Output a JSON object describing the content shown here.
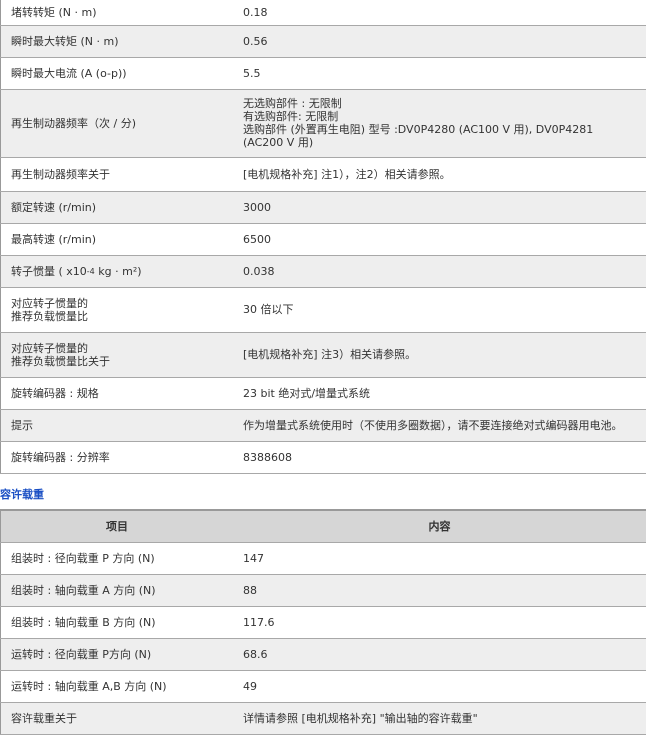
{
  "spec_table": {
    "rows": [
      {
        "label": "堵转转矩 (N · m)",
        "value": "0.18"
      },
      {
        "label": "瞬时最大转矩 (N · m)",
        "value": "0.56"
      },
      {
        "label": "瞬时最大电流 (A (o-p))",
        "value": "5.5"
      },
      {
        "label": "再生制动器频率（次 / 分)",
        "value_lines": [
          "无选购部件 : 无限制",
          "有选购部件: 无限制",
          "选购部件 (外置再生电阻) 型号 :DV0P4280 (AC100 V 用), DV0P4281 (AC200 V 用)"
        ]
      },
      {
        "label": "再生制动器频率关于",
        "value": "[电机规格补充] 注1），注2）相关请参照。"
      },
      {
        "label": "额定转速 (r/min)",
        "value": "3000"
      },
      {
        "label": "最高转速 (r/min)",
        "value": "6500"
      },
      {
        "label_pre": "转子惯量 ( x10",
        "label_sup": "-4",
        "label_post": " kg · m²)",
        "value": "0.038"
      },
      {
        "label_lines": [
          "对应转子惯量的",
          "推荐负载惯量比"
        ],
        "value": "30 倍以下"
      },
      {
        "label_lines": [
          "对应转子惯量的",
          "推荐负载惯量比关于"
        ],
        "value": "[电机规格补充] 注3）相关请参照。"
      },
      {
        "label": "旋转编码器 : 规格",
        "value": "23 bit 绝对式/增量式系统"
      },
      {
        "label": "提示",
        "value": "作为增量式系统使用时（不使用多圈数据），请不要连接绝对式编码器用电池。"
      },
      {
        "label": "旋转编码器 : 分辨率",
        "value": "8388608"
      }
    ]
  },
  "load_section": {
    "title": "容许载重",
    "headers": [
      "项目",
      "内容"
    ],
    "rows": [
      {
        "label": "组装时 : 径向载重 P 方向 (N)",
        "value": "147"
      },
      {
        "label": "组装时 : 轴向载重 A 方向 (N)",
        "value": "88"
      },
      {
        "label": "组装时 : 轴向载重 B 方向 (N)",
        "value": "117.6"
      },
      {
        "label": "运转时 : 径向载重 P方向 (N)",
        "value": "68.6"
      },
      {
        "label": "运转时 : 轴向载重 A,B 方向 (N)",
        "value": "49"
      },
      {
        "label": "容许载重关于",
        "value": "详情请参照 [电机规格补充] \"输出轴的容许载重\""
      }
    ]
  },
  "colors": {
    "title": "#1a4fc4",
    "row_alt": "#eeeeee",
    "header_bg": "#d6d6d6"
  }
}
